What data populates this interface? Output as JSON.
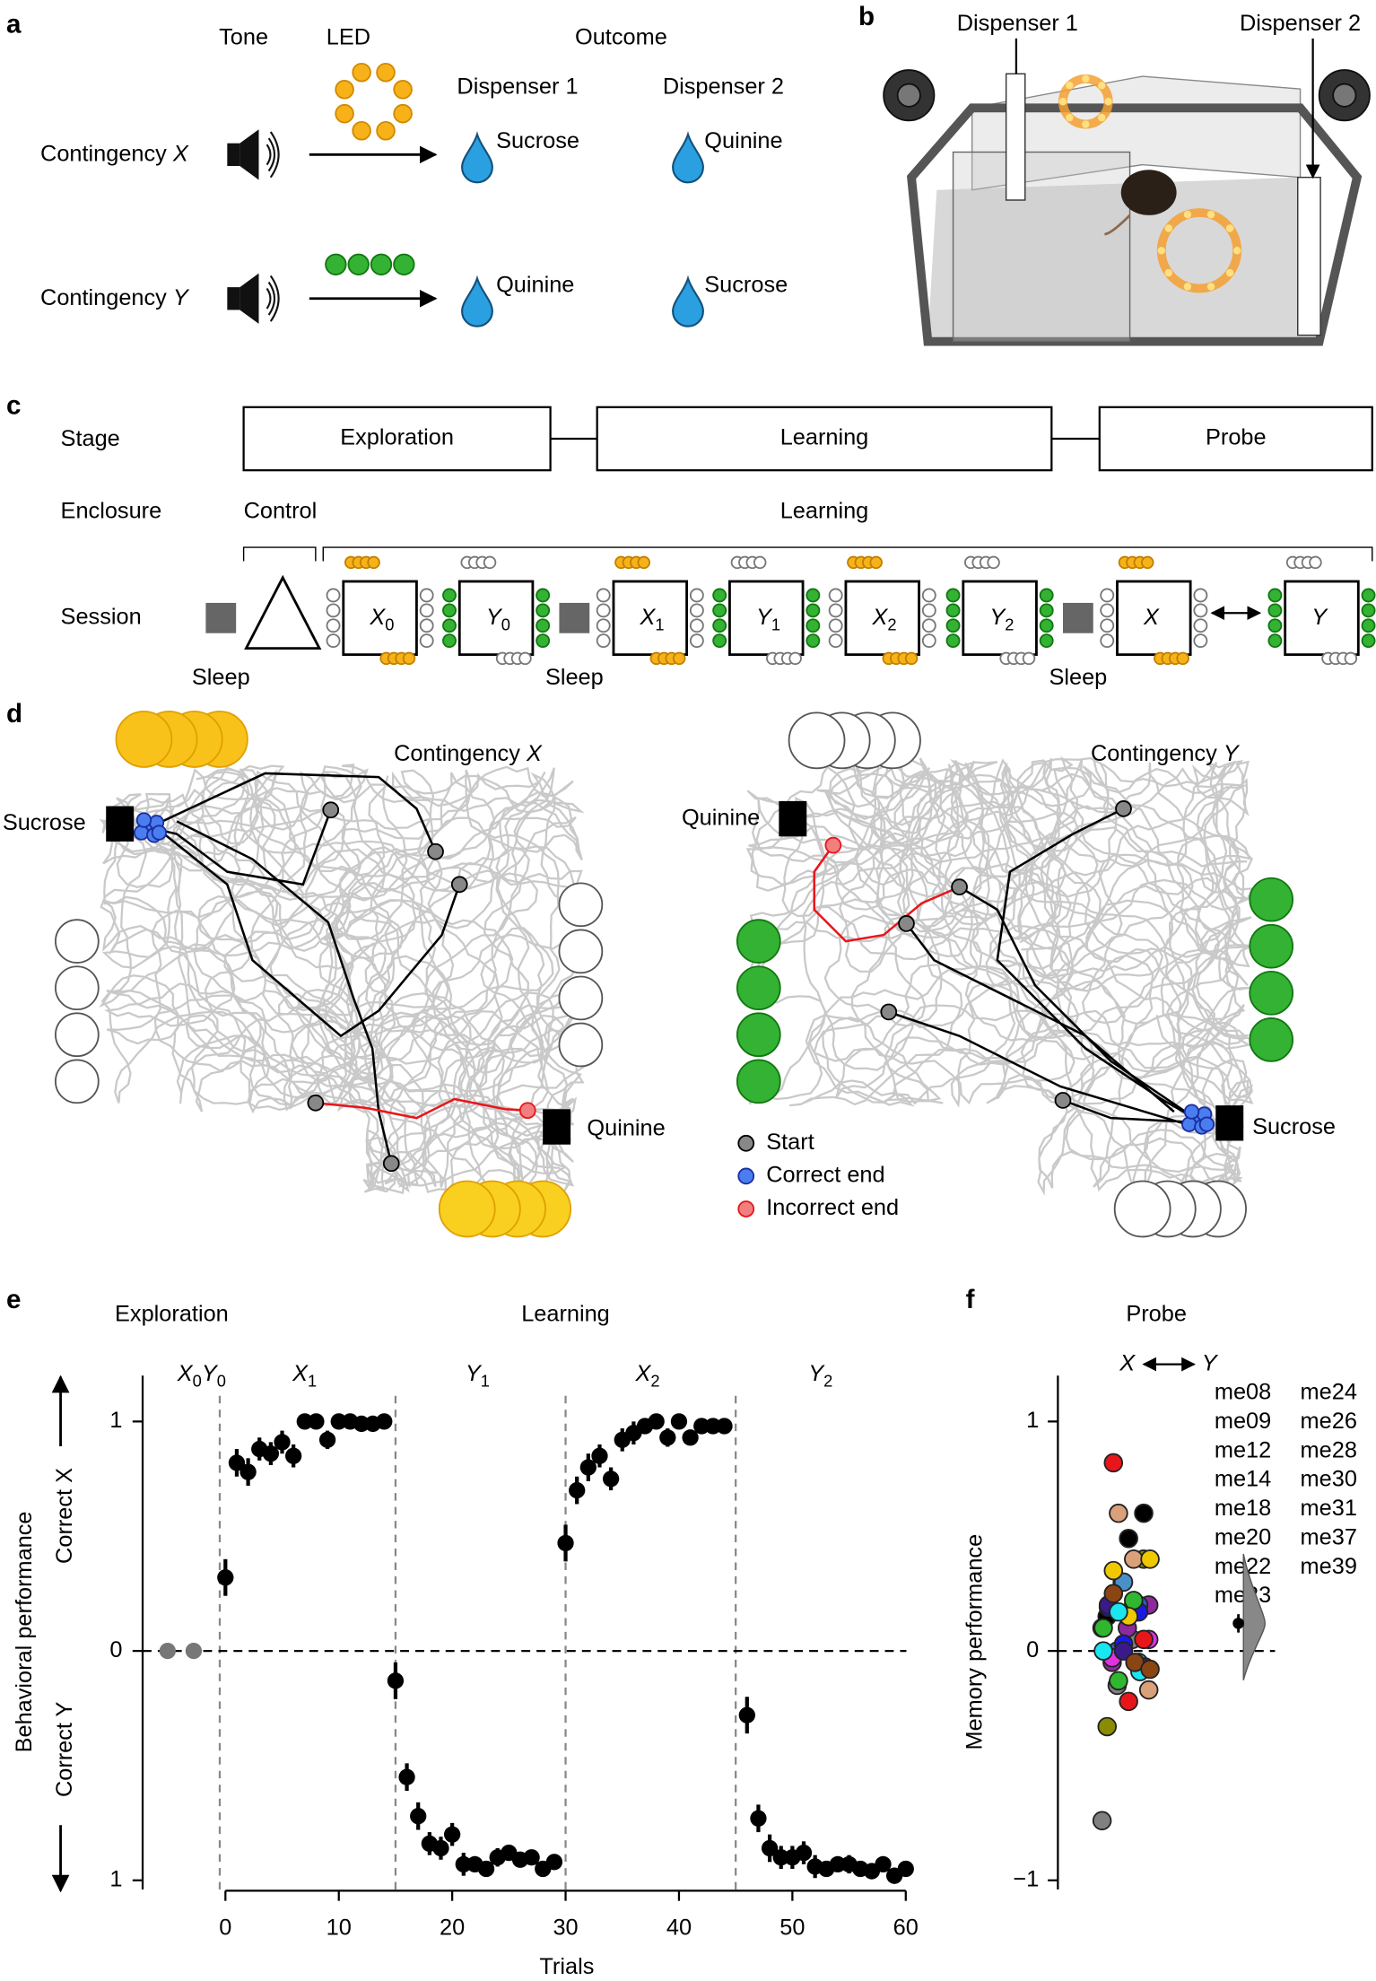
{
  "panel_a": {
    "label": "a",
    "tone": "Tone",
    "led": "LED",
    "outcome": "Outcome",
    "dispensers": [
      "Dispenser 1",
      "Dispenser 2"
    ],
    "rows": [
      {
        "label": "Contingency",
        "var": "X",
        "d1": "Sucrose",
        "d2": "Quinine"
      },
      {
        "label": "Contingency",
        "var": "Y",
        "d1": "Quinine",
        "d2": "Sucrose"
      }
    ]
  },
  "panel_b": {
    "label": "b",
    "dispensers": [
      "Dispenser 1",
      "Dispenser 2"
    ]
  },
  "panel_c": {
    "label": "c",
    "row_labels": [
      "Stage",
      "Enclosure",
      "Session"
    ],
    "stages": [
      "Exploration",
      "Learning",
      "Probe"
    ],
    "enclosures": [
      "Control",
      "Learning"
    ],
    "sessions": [
      {
        "name": "X",
        "sub": "0"
      },
      {
        "name": "Y",
        "sub": "0"
      },
      {
        "name": "X",
        "sub": "1"
      },
      {
        "name": "Y",
        "sub": "1"
      },
      {
        "name": "X",
        "sub": "2"
      },
      {
        "name": "Y",
        "sub": "2"
      },
      {
        "name": "X"
      },
      {
        "name": "Y"
      }
    ],
    "sleep_labels": [
      "Sleep",
      "Sleep",
      "Sleep"
    ]
  },
  "panel_d": {
    "label": "d",
    "maps": [
      {
        "title": "Contingency",
        "var": "X",
        "rewards": [
          "Sucrose",
          "Quinine"
        ]
      },
      {
        "title": "Contingency",
        "var": "Y",
        "rewards": [
          "Quinine",
          "Sucrose"
        ]
      }
    ],
    "legend": [
      "Start",
      "Correct end",
      "Incorrect end"
    ]
  },
  "panel_e": {
    "label": "e",
    "type": "scatter",
    "headers": [
      "Exploration",
      "Learning"
    ],
    "phases": [
      {
        "parts": [
          {
            "name": "X",
            "sub": "0"
          },
          {
            "name": "Y",
            "sub": "0"
          }
        ]
      },
      {
        "parts": [
          {
            "name": "X",
            "sub": "1"
          }
        ]
      },
      {
        "parts": [
          {
            "name": "Y",
            "sub": "1"
          }
        ]
      },
      {
        "parts": [
          {
            "name": "X",
            "sub": "2"
          }
        ]
      },
      {
        "parts": [
          {
            "name": "Y",
            "sub": "2"
          }
        ]
      }
    ],
    "ylabel": "Behavioral performance",
    "side_labels": [
      "Correct X",
      "Correct Y"
    ],
    "xlabel": "Trials",
    "xlim": [
      -7.3,
      60.5
    ],
    "ylim": [
      -1.04,
      1.2
    ],
    "xticks": [
      0,
      10,
      20,
      30,
      40,
      50,
      60
    ],
    "yticks": [
      {
        "value": -1,
        "label": "1"
      },
      0,
      1
    ],
    "dividers": [
      -0.5,
      15,
      30,
      45
    ],
    "series": [
      {
        "color": "#777777",
        "x": [
          -5.1,
          -2.8
        ],
        "values": [
          0,
          0
        ]
      },
      {
        "color": "#000000",
        "x": [
          0,
          1,
          2,
          3,
          4,
          5,
          6,
          7,
          8,
          9,
          10,
          11,
          12,
          13,
          14,
          15,
          16,
          17,
          18,
          19,
          20,
          21,
          22,
          23,
          24,
          25,
          26,
          27,
          28,
          29,
          30,
          31,
          32,
          33,
          34,
          35,
          36,
          37,
          38,
          39,
          40,
          41,
          42,
          43,
          44,
          46,
          47,
          48,
          49,
          50,
          51,
          52,
          53,
          54,
          55,
          56,
          57,
          58,
          59,
          60
        ],
        "values": [
          0.32,
          0.82,
          0.78,
          0.88,
          0.86,
          0.91,
          0.85,
          1.0,
          1.0,
          0.92,
          1.0,
          1.0,
          0.99,
          0.99,
          1.0,
          -0.13,
          -0.55,
          -0.72,
          -0.84,
          -0.86,
          -0.8,
          -0.93,
          -0.93,
          -0.95,
          -0.9,
          -0.88,
          -0.91,
          -0.9,
          -0.95,
          -0.92,
          0.47,
          0.7,
          0.8,
          0.85,
          0.75,
          0.92,
          0.95,
          0.98,
          1.0,
          0.93,
          1.0,
          0.93,
          0.98,
          0.98,
          0.98,
          -0.28,
          -0.73,
          -0.86,
          -0.9,
          -0.9,
          -0.88,
          -0.94,
          -0.95,
          -0.93,
          -0.93,
          -0.95,
          -0.96,
          -0.93,
          -0.98,
          -0.95
        ],
        "errors": [
          0.08,
          0.06,
          0.06,
          0.05,
          0.05,
          0.05,
          0.05,
          0.03,
          0.03,
          0.04,
          0.02,
          0.02,
          0.02,
          0.02,
          0.02,
          0.08,
          0.06,
          0.06,
          0.05,
          0.05,
          0.05,
          0.05,
          0.03,
          0.03,
          0.04,
          0.02,
          0.02,
          0.02,
          0.02,
          0.02,
          0.08,
          0.06,
          0.06,
          0.05,
          0.05,
          0.05,
          0.05,
          0.03,
          0.03,
          0.04,
          0.02,
          0.02,
          0.02,
          0.02,
          0.02,
          0.08,
          0.06,
          0.06,
          0.05,
          0.05,
          0.05,
          0.05,
          0.03,
          0.03,
          0.04,
          0.02,
          0.02,
          0.02,
          0.02,
          0.02
        ]
      }
    ]
  },
  "panel_f": {
    "label": "f",
    "type": "scatter",
    "title": "Probe",
    "contrast": [
      "X",
      "Y"
    ],
    "ylabel": "Memory performance",
    "ylim": [
      -1.04,
      1.2
    ],
    "yticks": [
      {
        "value": -1,
        "label": "−1"
      },
      0,
      1
    ],
    "mean": 0.12,
    "mean_error": 0.04,
    "series": [
      {
        "name": "me08",
        "color": "#808080",
        "values": [
          -0.74,
          -0.15,
          0.05
        ]
      },
      {
        "name": "me09",
        "color": "#8e2a9e",
        "values": [
          0.2,
          -0.05,
          0.1
        ]
      },
      {
        "name": "me12",
        "color": "#8b8b00",
        "values": [
          0.4,
          -0.33,
          0.3
        ]
      },
      {
        "name": "me14",
        "color": "#2b5fc9",
        "values": [
          0.2,
          0.1,
          0.0
        ]
      },
      {
        "name": "me18",
        "color": "#e032e0",
        "values": [
          0.2,
          0.05,
          -0.03
        ]
      },
      {
        "name": "me20",
        "color": "#000000",
        "values": [
          0.49,
          0.6,
          0.15
        ]
      },
      {
        "name": "me22",
        "color": "#4a90c8",
        "values": [
          0.3,
          -0.05,
          0.1
        ]
      },
      {
        "name": "me23",
        "color": "#d9a07a",
        "values": [
          0.6,
          0.4,
          -0.17
        ]
      },
      {
        "name": "me24",
        "color": "#e8161b",
        "values": [
          0.82,
          -0.22,
          0.05
        ]
      },
      {
        "name": "me26",
        "color": "#1a1ae6",
        "values": [
          0.19,
          0.03,
          0.17
        ]
      },
      {
        "name": "me28",
        "color": "#2fb82f",
        "values": [
          0.1,
          -0.13,
          0.22
        ]
      },
      {
        "name": "me30",
        "color": "#f0c800",
        "values": [
          0.4,
          0.35,
          0.15
        ]
      },
      {
        "name": "me31",
        "color": "#3a1a8a",
        "values": [
          -0.07,
          0.2,
          0.0
        ]
      },
      {
        "name": "me37",
        "color": "#19e6f0",
        "values": [
          -0.09,
          0.0,
          0.17
        ]
      },
      {
        "name": "me39",
        "color": "#8b4513",
        "values": [
          -0.05,
          -0.08,
          0.25
        ]
      }
    ]
  }
}
